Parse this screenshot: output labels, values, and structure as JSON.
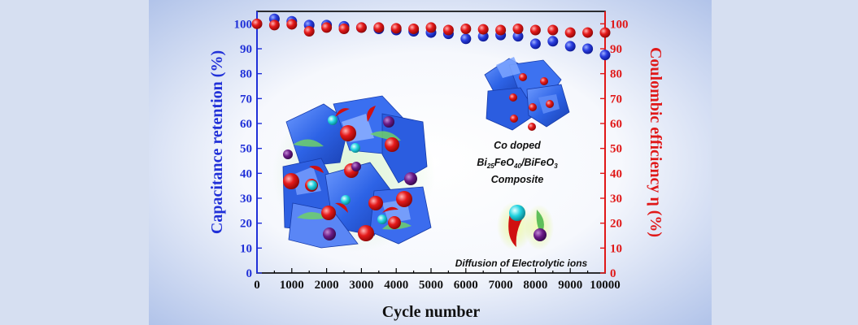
{
  "colors": {
    "left_axis": "#2030d8",
    "right_axis": "#e01818",
    "capacitance_series": "#2a3ee0",
    "coulombic_series": "#e51a1a",
    "panel_background": "#c9d6ef",
    "outer_background": "#d6dff1"
  },
  "annotations": {
    "composite_line1": "Co doped",
    "composite_line2_a": "Bi",
    "composite_line2_sub1": "25",
    "composite_line2_b": "FeO",
    "composite_line2_sub2": "40",
    "composite_line2_c": "/BiFeO",
    "composite_line2_sub3": "3",
    "composite_line3": "Composite",
    "diffusion": "Diffusion of Electrolytic ions"
  },
  "chart_data": {
    "type": "scatter",
    "xlabel": "Cycle number",
    "ylabel_left": "Capacitance retention (%)",
    "ylabel_right": "Coulombic efficiency η (%)",
    "xlim": [
      0,
      10000
    ],
    "ylim_left": [
      0,
      105
    ],
    "ylim_right": [
      0,
      105
    ],
    "x_ticks": [
      "0",
      "500",
      "1000",
      "1500",
      "2000",
      "2500",
      "3000",
      "3500",
      "4000",
      "4500",
      "5000",
      "5500",
      "6000",
      "6500",
      "7000",
      "7500",
      "8000",
      "8500",
      "9000",
      "9500",
      "10000"
    ],
    "x_tick_labels": [
      "0",
      "",
      "1000",
      "",
      "2000",
      "",
      "3000",
      "",
      "4000",
      "",
      "5000",
      "",
      "6000",
      "",
      "7000",
      "",
      "8000",
      "",
      "9000",
      "",
      "10000"
    ],
    "y_ticks_left": [
      "0",
      "10",
      "20",
      "30",
      "40",
      "50",
      "60",
      "70",
      "80",
      "90",
      "100"
    ],
    "y_ticks_right": [
      "0",
      "10",
      "20",
      "30",
      "40",
      "50",
      "60",
      "70",
      "80",
      "90",
      "100"
    ],
    "series": [
      {
        "axis": "left",
        "x": [
          500,
          1000,
          1500,
          2000,
          2500,
          3000,
          3500,
          4000,
          4500,
          5000,
          5500,
          6000,
          6500,
          7000,
          7500,
          8000,
          8500,
          9000,
          9500,
          10000
        ],
        "values": [
          102,
          101,
          99.5,
          99.5,
          99,
          98.5,
          98,
          97.5,
          97,
          96.5,
          96,
          94,
          95,
          95.5,
          95,
          92,
          93,
          91,
          90,
          87.5
        ]
      },
      {
        "axis": "right",
        "x": [
          0,
          500,
          1000,
          1500,
          2000,
          2500,
          3000,
          3500,
          4000,
          4500,
          5000,
          5500,
          6000,
          6500,
          7000,
          7500,
          8000,
          8500,
          9000,
          9500,
          10000
        ],
        "values": [
          100,
          99.5,
          99.8,
          97,
          98.5,
          98,
          98.5,
          98.5,
          98.2,
          98,
          98.5,
          97.5,
          98,
          97.8,
          97.5,
          98,
          97.5,
          97.5,
          96.5,
          96.5,
          96.5
        ]
      }
    ]
  }
}
